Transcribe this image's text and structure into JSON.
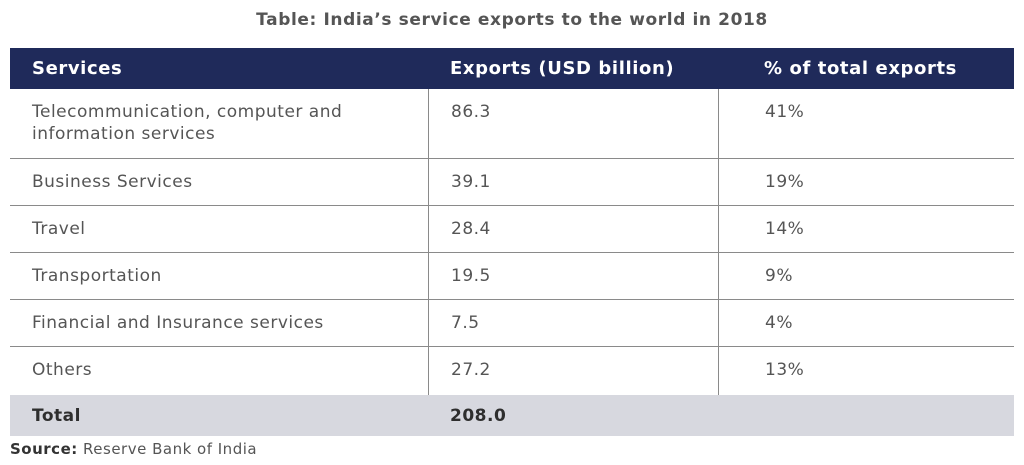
{
  "title": "Table: India’s service exports to the world in 2018",
  "table": {
    "headers": [
      "Services",
      "Exports (USD billion)",
      "% of total exports"
    ],
    "rows": [
      {
        "service_line1": "Telecommunication, computer and",
        "service_line2": "information services",
        "exports": "86.3",
        "share": "41%"
      },
      {
        "service": "Business Services",
        "exports": "39.1",
        "share": "19%"
      },
      {
        "service": "Travel",
        "exports": "28.4",
        "share": "14%"
      },
      {
        "service": "Transportation",
        "exports": "19.5",
        "share": "9%"
      },
      {
        "service": "Financial and Insurance services",
        "exports": "7.5",
        "share": "4%"
      },
      {
        "service": "Others",
        "exports": "27.2",
        "share": "13%"
      }
    ],
    "total": {
      "label": "Total",
      "exports": "208.0",
      "share": ""
    }
  },
  "source": {
    "label": "Source:",
    "text": "Reserve Bank of India"
  },
  "colors": {
    "header_bg": "#1f2a5a",
    "total_bg": "#d7d8df"
  }
}
